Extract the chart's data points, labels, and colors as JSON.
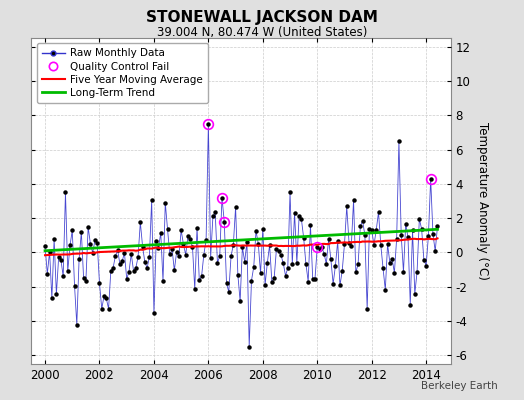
{
  "title": "STONEWALL JACKSON DAM",
  "subtitle": "39.004 N, 80.474 W (United States)",
  "ylabel": "Temperature Anomaly (°C)",
  "watermark": "Berkeley Earth",
  "xlim": [
    1999.5,
    2014.9
  ],
  "ylim": [
    -6.5,
    12.5
  ],
  "yticks": [
    -6,
    -4,
    -2,
    0,
    2,
    4,
    6,
    8,
    10,
    12
  ],
  "xticks": [
    2000,
    2002,
    2004,
    2006,
    2008,
    2010,
    2012,
    2014
  ],
  "bg_color": "#e0e0e0",
  "plot_bg_color": "#ffffff",
  "line_color": "#3333cc",
  "marker_color": "#000000",
  "ma_color": "#ff0000",
  "trend_color": "#00bb00",
  "qc_color": "#ff00ff",
  "grid_color": "#cccccc",
  "seed": 12
}
